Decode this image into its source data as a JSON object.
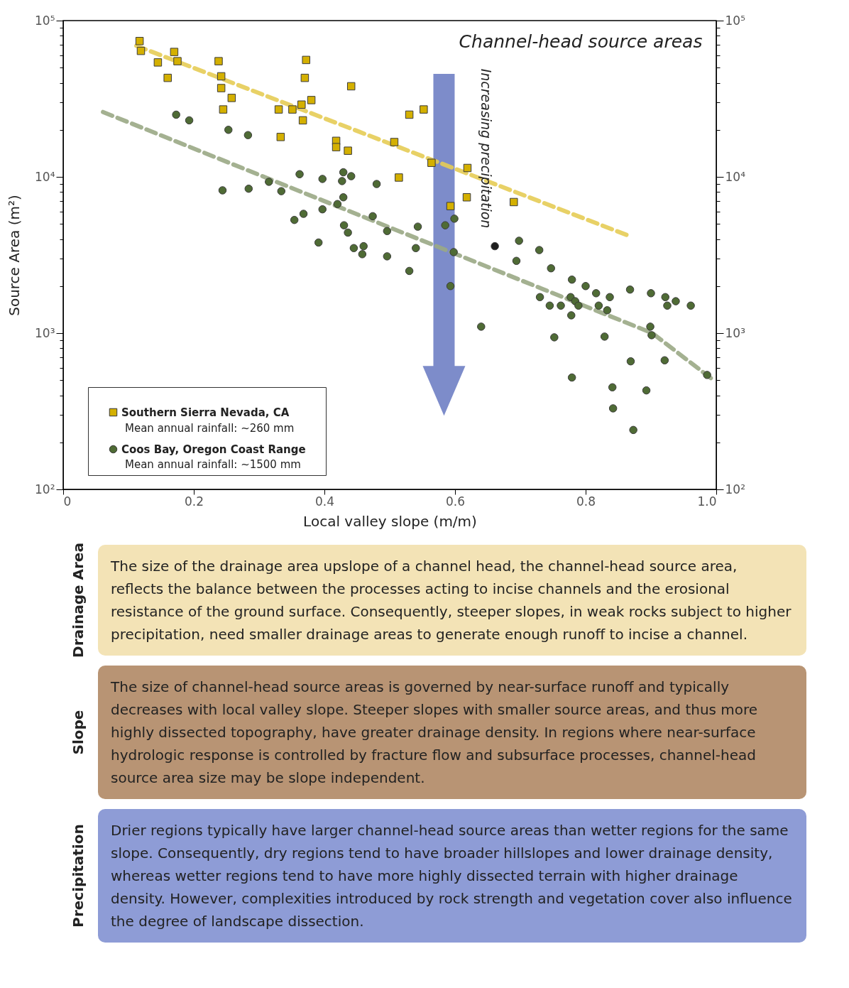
{
  "chart_data": {
    "type": "scatter",
    "title": "Channel-head source areas",
    "xlabel": "Local valley slope (m/m)",
    "ylabel": "Source Area (m²)",
    "xlim": [
      0,
      1
    ],
    "xticks": [
      0,
      0.2,
      0.4,
      0.6,
      0.8,
      {
        "value": 1,
        "label": "1.0"
      }
    ],
    "ylim": [
      100,
      100000
    ],
    "log": "y",
    "yticks": [
      {
        "value": 100,
        "label": "10²"
      },
      {
        "value": 200,
        "label": null
      },
      {
        "value": 300,
        "label": null
      },
      {
        "value": 400,
        "label": null
      },
      {
        "value": 500,
        "label": null
      },
      {
        "value": 600,
        "label": null
      },
      {
        "value": 700,
        "label": null
      },
      {
        "value": 800,
        "label": null
      },
      {
        "value": 900,
        "label": null
      },
      {
        "value": 1000,
        "label": "10³"
      },
      {
        "value": 2000,
        "label": null
      },
      {
        "value": 3000,
        "label": null
      },
      {
        "value": 4000,
        "label": null
      },
      {
        "value": 5000,
        "label": null
      },
      {
        "value": 6000,
        "label": null
      },
      {
        "value": 7000,
        "label": null
      },
      {
        "value": 8000,
        "label": null
      },
      {
        "value": 9000,
        "label": null
      },
      {
        "value": 10000,
        "label": "10⁴"
      },
      {
        "value": 20000,
        "label": null
      },
      {
        "value": 30000,
        "label": null
      },
      {
        "value": 40000,
        "label": null
      },
      {
        "value": 50000,
        "label": null
      },
      {
        "value": 60000,
        "label": null
      },
      {
        "value": 70000,
        "label": null
      },
      {
        "value": 80000,
        "label": null
      },
      {
        "value": 90000,
        "label": null
      },
      {
        "value": 100000,
        "label": "10⁵"
      }
    ],
    "grid": false,
    "legend": "bottom left",
    "series": [
      {
        "type": "scatter",
        "name": "Southern Sierra Nevada, CA",
        "color": "#d4b000",
        "marker": "square",
        "x": [
          0.117,
          0.119,
          0.145,
          0.17,
          0.175,
          0.16,
          0.238,
          0.242,
          0.242,
          0.258,
          0.245,
          0.372,
          0.37,
          0.441,
          0.38,
          0.365,
          0.351,
          0.33,
          0.367,
          0.333,
          0.418,
          0.418,
          0.436,
          0.552,
          0.53,
          0.507,
          0.564,
          0.619,
          0.514,
          0.618,
          0.593,
          0.69
        ],
        "values": [
          74000,
          64000,
          54000,
          63000,
          55000,
          43000,
          55000,
          44000,
          37000,
          32000,
          27000,
          56000,
          43000,
          38000,
          31000,
          29000,
          27000,
          27000,
          23000,
          18000,
          17000,
          15500,
          14700,
          27000,
          25000,
          16700,
          12300,
          11400,
          9900,
          7400,
          6500,
          6900
        ]
      },
      {
        "type": "scatter",
        "name": "Coos Bay, Oregon Coast Range",
        "color": "#4f6b35",
        "marker": "circle",
        "x": [
          0.173,
          0.193,
          0.253,
          0.283,
          0.362,
          0.397,
          0.429,
          0.441,
          0.427,
          0.48,
          0.315,
          0.244,
          0.284,
          0.334,
          0.429,
          0.42,
          0.397,
          0.368,
          0.354,
          0.474,
          0.43,
          0.436,
          0.496,
          0.543,
          0.599,
          0.585,
          0.391,
          0.445,
          0.46,
          0.458,
          0.496,
          0.54,
          0.53,
          0.598,
          0.593,
          0.698,
          0.729,
          0.694,
          0.747,
          0.779,
          0.8,
          0.816,
          0.837,
          0.868,
          0.9,
          0.922,
          0.938,
          0.925,
          0.961,
          0.777,
          0.784,
          0.789,
          0.73,
          0.745,
          0.762,
          0.82,
          0.833,
          0.778,
          0.64,
          0.752,
          0.829,
          0.899,
          0.901,
          0.921,
          0.986,
          0.869,
          0.779,
          0.841,
          0.893,
          0.842,
          0.873
        ],
        "values": [
          25000,
          23000,
          20000,
          18500,
          10400,
          9700,
          10700,
          10100,
          9400,
          9000,
          9300,
          8200,
          8400,
          8100,
          7400,
          6700,
          6200,
          5800,
          5300,
          5600,
          4900,
          4400,
          4500,
          4800,
          5400,
          4900,
          3800,
          3500,
          3600,
          3200,
          3100,
          3500,
          2500,
          3300,
          2000,
          3900,
          3400,
          2900,
          2600,
          2200,
          2000,
          1800,
          1700,
          1900,
          1800,
          1700,
          1600,
          1500,
          1500,
          1700,
          1600,
          1500,
          1700,
          1500,
          1500,
          1500,
          1400,
          1300,
          1100,
          940,
          950,
          1100,
          970,
          670,
          540,
          660,
          520,
          450,
          430,
          330,
          240
        ]
      },
      {
        "type": "scatter",
        "color": "#1e1e1e",
        "marker": "circle",
        "x": [
          0.661
        ],
        "values": [
          3600
        ]
      },
      {
        "type": "line",
        "color": "#e6cc55",
        "line_style": "dashed",
        "marker": "none",
        "x": [
          0.112,
          0.866
        ],
        "values": [
          69000,
          4200
        ]
      },
      {
        "type": "line",
        "color": "#9aa985",
        "line_style": "dashed",
        "marker": "none",
        "x": [
          0.061,
          0.902,
          0.993
        ],
        "values": [
          26000,
          1000,
          510
        ]
      }
    ],
    "annotations": [
      "Increasing precipitation",
      "Mean annual rainfall: ~260 mm",
      "Mean annual rainfall: ~1500 mm",
      "Drainage Area",
      "The size of the drainage area upslope of a channel head, the channel-head source area, reflects the balance between the processes acting to incise channels and the erosional resistance of the ground surface. Consequently, steeper slopes, in weak rocks subject to higher precipitation, need smaller drainage areas to generate enough runoff to incise a channel.",
      "Slope",
      "The size of channel-head source areas is governed by near-surface runoff and typically decreases with local valley slope. Steeper slopes with smaller source areas, and thus more highly dissected topography, have greater drainage density. In regions where near-surface hydrologic response is controlled by fracture flow and subsurface processes, channel-head source area size may be slope independent.",
      "Precipitation",
      "Drier regions typically have larger channel-head source areas than wetter regions for the same slope. Consequently, dry regions tend to have broader hillslopes and lower drainage density, whereas wetter regions tend to have more highly dissected terrain with higher drainage density. However, complexities introduced by rock strength and vegetation cover also influence the degree of landscape dissection."
    ]
  }
}
